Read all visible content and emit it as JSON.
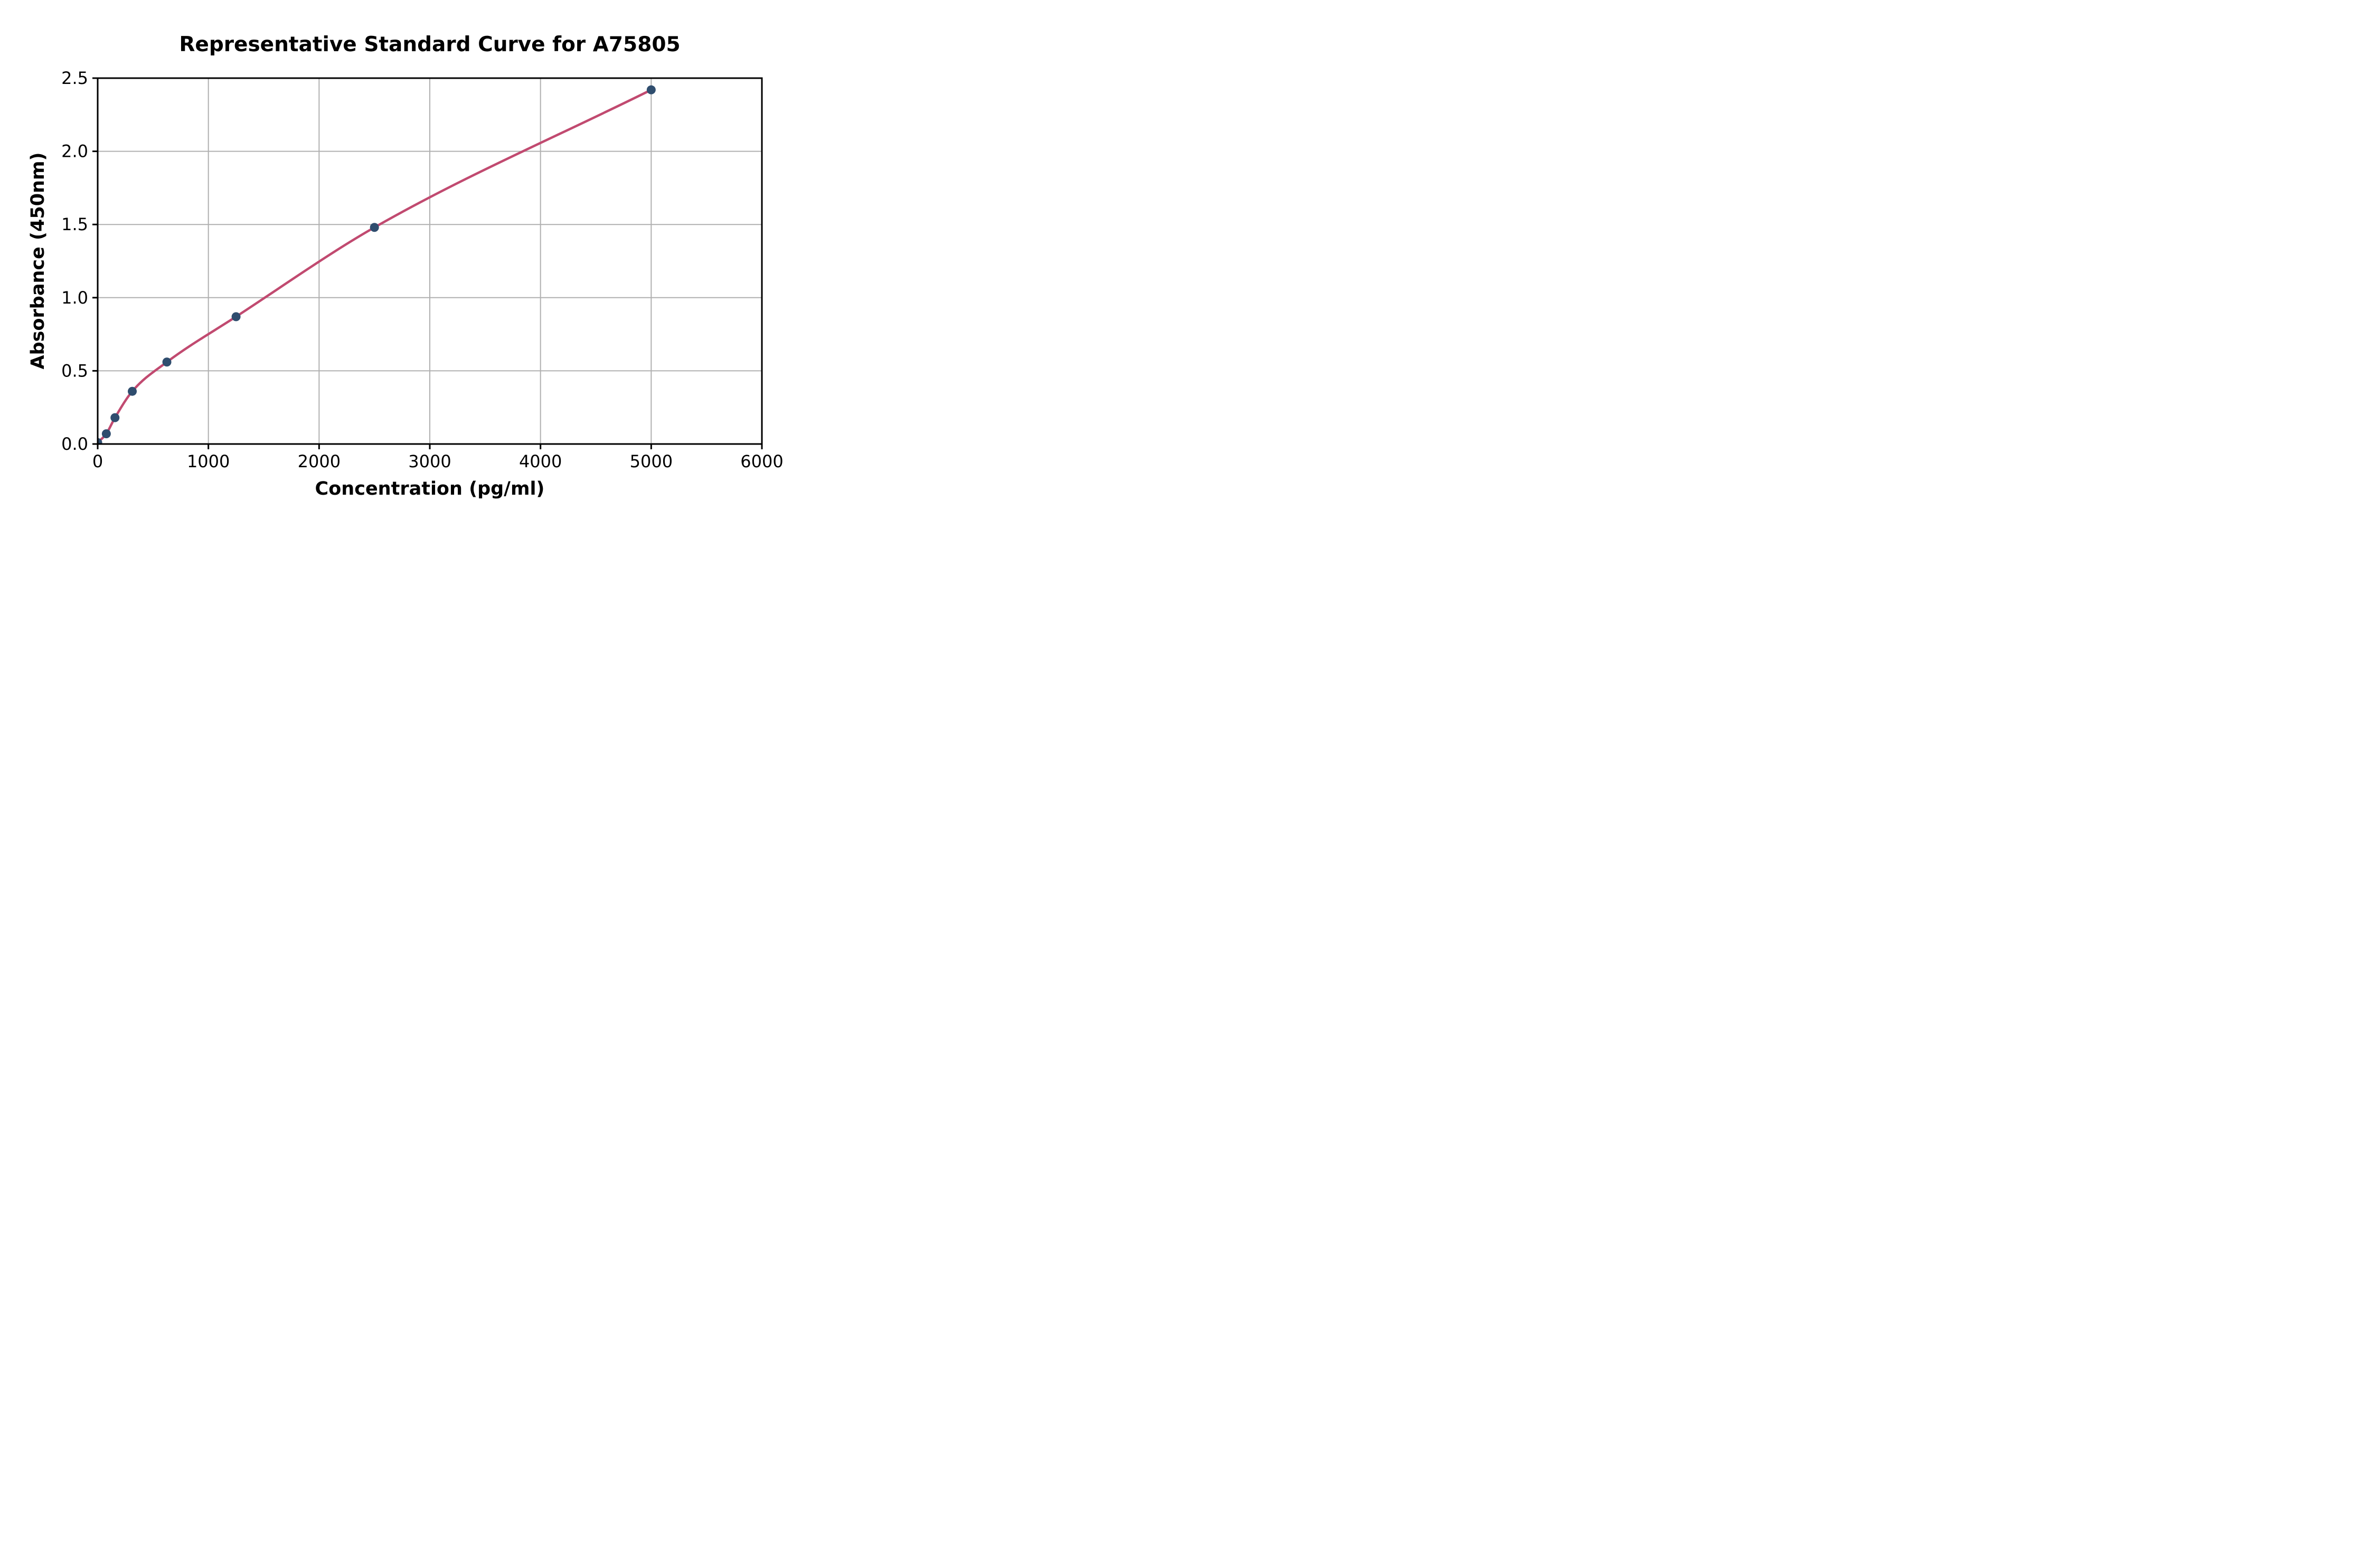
{
  "chart_data": {
    "type": "scatter",
    "title": "Representative Standard Curve for A75805",
    "xlabel": "Concentration (pg/ml)",
    "ylabel": "Absorbance (450nm)",
    "xlim": [
      0,
      6000
    ],
    "ylim": [
      0,
      2.5
    ],
    "xticks": {
      "values": [
        0,
        1000,
        2000,
        3000,
        4000,
        5000,
        6000
      ],
      "labels": [
        "0",
        "1000",
        "2000",
        "3000",
        "4000",
        "5000",
        "6000"
      ]
    },
    "yticks": {
      "values": [
        0,
        0.5,
        1.0,
        1.5,
        2.0,
        2.5
      ],
      "labels": [
        "0.0",
        "0.5",
        "1.0",
        "1.5",
        "2.0",
        "2.5"
      ]
    },
    "grid": true,
    "legend": "none",
    "points": [
      {
        "x": 0,
        "y": 0.01
      },
      {
        "x": 78.1,
        "y": 0.07
      },
      {
        "x": 156.3,
        "y": 0.18
      },
      {
        "x": 312.5,
        "y": 0.36
      },
      {
        "x": 625,
        "y": 0.56
      },
      {
        "x": 1250,
        "y": 0.87
      },
      {
        "x": 2500,
        "y": 1.48
      },
      {
        "x": 5000,
        "y": 2.42
      }
    ],
    "curve": {
      "description": "smooth fitted curve through all standard points, drawn from x=0 to x=5000"
    },
    "colors": {
      "marker": "#2f4d6e",
      "curve": "#c14a70",
      "grid": "#b0b0b0",
      "axis": "#000000",
      "background": "#ffffff"
    }
  }
}
